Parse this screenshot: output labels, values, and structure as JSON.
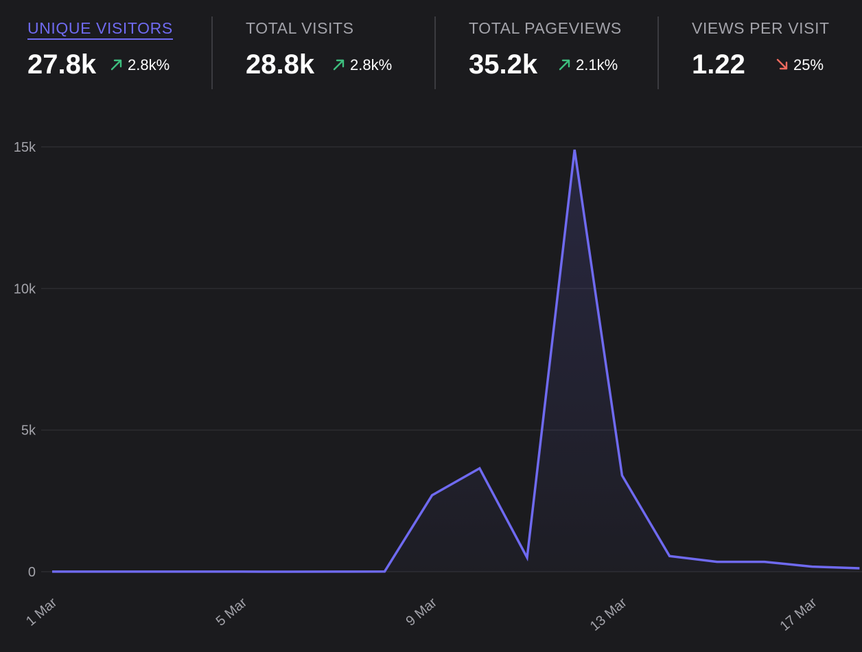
{
  "stats": [
    {
      "label": "UNIQUE VISITORS",
      "value": "27.8k",
      "change": "2.8k%",
      "direction": "up",
      "active": true
    },
    {
      "label": "TOTAL VISITS",
      "value": "28.8k",
      "change": "2.8k%",
      "direction": "up",
      "active": false
    },
    {
      "label": "TOTAL PAGEVIEWS",
      "value": "35.2k",
      "change": "2.1k%",
      "direction": "up",
      "active": false
    },
    {
      "label": "VIEWS PER VISIT",
      "value": "1.22",
      "change": "25%",
      "direction": "down",
      "active": false
    }
  ],
  "colors": {
    "accent": "#6f6af0",
    "up": "#3dbf7e",
    "down": "#ef6a5e",
    "grid": "#2c2c30",
    "tick": "#a3a3aa"
  },
  "chart_data": {
    "type": "area",
    "title": "",
    "series_name": "Unique visitors",
    "x": [
      "1 Mar",
      "2 Mar",
      "3 Mar",
      "4 Mar",
      "5 Mar",
      "6 Mar",
      "7 Mar",
      "8 Mar",
      "9 Mar",
      "10 Mar",
      "11 Mar",
      "12 Mar",
      "13 Mar",
      "14 Mar",
      "15 Mar",
      "16 Mar",
      "17 Mar",
      "18 Mar"
    ],
    "values": [
      2,
      2,
      2,
      2,
      2,
      0,
      2,
      5,
      2700,
      3650,
      500,
      14900,
      3400,
      550,
      350,
      350,
      180,
      120
    ],
    "x_tick_labels": [
      "1 Mar",
      "5 Mar",
      "9 Mar",
      "13 Mar",
      "17 Mar"
    ],
    "x_tick_indices": [
      0,
      4,
      8,
      12,
      16
    ],
    "y_ticks": [
      0,
      5000,
      10000,
      15000
    ],
    "y_tick_labels": [
      "0",
      "5k",
      "10k",
      "15k"
    ],
    "ylim": [
      0,
      15000
    ],
    "xlabel": "",
    "ylabel": "",
    "grid": true
  }
}
